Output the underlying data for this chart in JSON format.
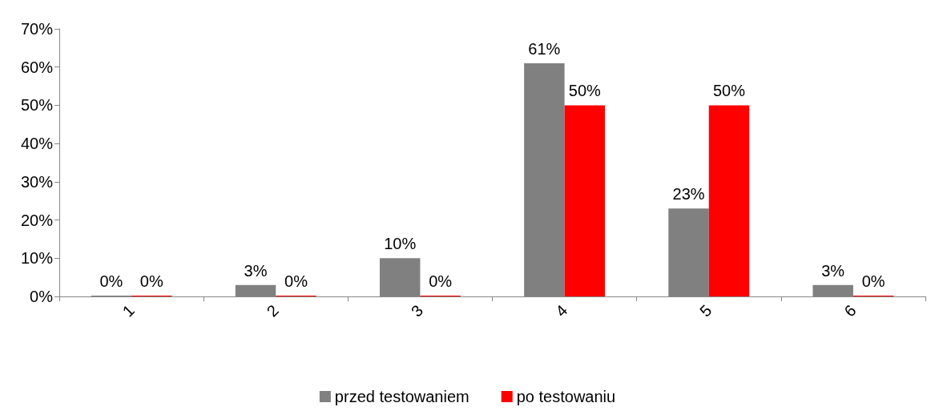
{
  "chart_data": {
    "type": "bar",
    "categories": [
      "1",
      "2",
      "3",
      "4",
      "5",
      "6"
    ],
    "series": [
      {
        "name": "przed testowaniem",
        "color": "#808080",
        "values": [
          0,
          3,
          10,
          61,
          23,
          3
        ],
        "value_labels": [
          "0%",
          "3%",
          "10%",
          "61%",
          "23%",
          "3%"
        ]
      },
      {
        "name": "po testowaniu",
        "color": "#ff0000",
        "values": [
          0,
          0,
          0,
          50,
          50,
          0
        ],
        "value_labels": [
          "0%",
          "0%",
          "0%",
          "50%",
          "50%",
          "0%"
        ]
      }
    ],
    "ylim": [
      0,
      70
    ],
    "yticks": [
      {
        "value": 0,
        "label": "0%"
      },
      {
        "value": 10,
        "label": "10%"
      },
      {
        "value": 20,
        "label": "20%"
      },
      {
        "value": 30,
        "label": "30%"
      },
      {
        "value": 40,
        "label": "40%"
      },
      {
        "value": 50,
        "label": "50%"
      },
      {
        "value": 60,
        "label": "60%"
      },
      {
        "value": 70,
        "label": "70%"
      }
    ],
    "grid": false,
    "legend": "bottom"
  }
}
